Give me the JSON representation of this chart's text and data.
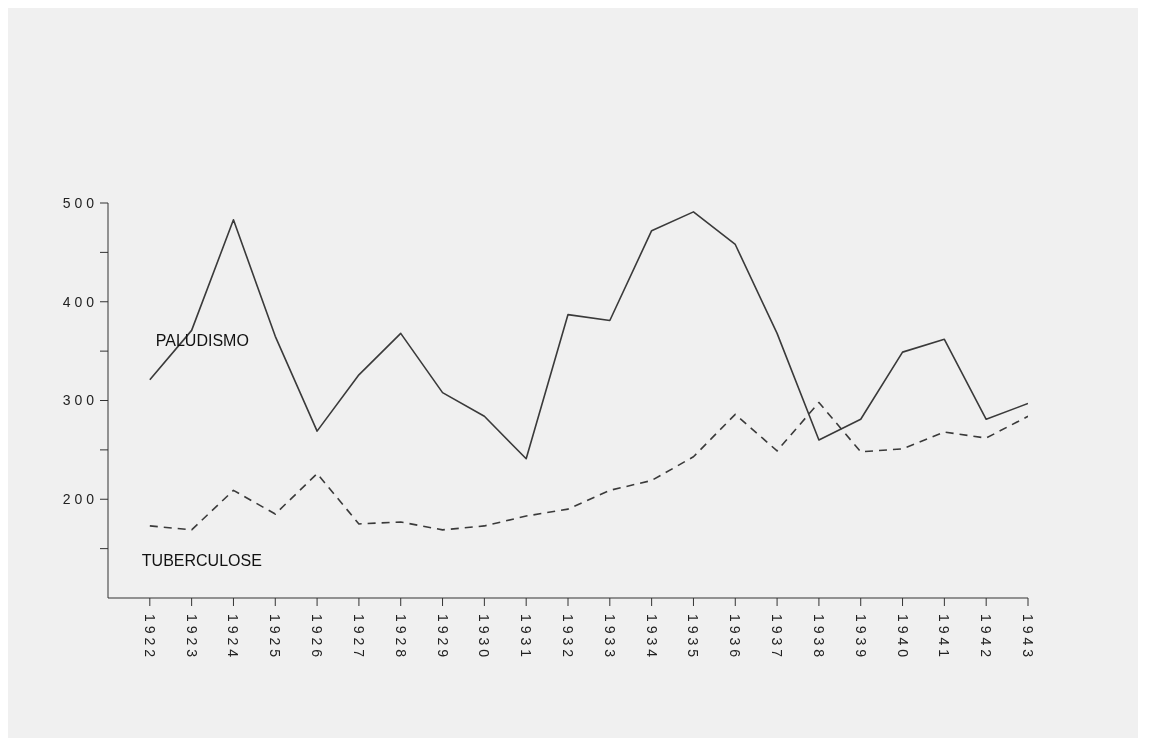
{
  "chart_data": {
    "type": "line",
    "categories": [
      "1922",
      "1923",
      "1924",
      "1925",
      "1926",
      "1927",
      "1928",
      "1929",
      "1930",
      "1931",
      "1932",
      "1933",
      "1934",
      "1935",
      "1936",
      "1937",
      "1938",
      "1939",
      "1940",
      "1941",
      "1942",
      "1943"
    ],
    "series": [
      {
        "name": "PALUDISMO",
        "color": "#3a3a3a",
        "line_style": "solid",
        "values": [
          321,
          371,
          483,
          365,
          269,
          326,
          368,
          308,
          284,
          241,
          387,
          381,
          472,
          491,
          458,
          368,
          260,
          281,
          349,
          362,
          281,
          297
        ]
      },
      {
        "name": "TUBERCULOSE",
        "color": "#3a3a3a",
        "line_style": "dashed",
        "values": [
          173,
          169,
          209,
          185,
          226,
          175,
          177,
          169,
          173,
          183,
          190,
          209,
          219,
          243,
          286,
          249,
          298,
          248,
          251,
          268,
          262,
          284
        ]
      }
    ],
    "ylim": [
      100,
      500
    ],
    "yticks": [
      {
        "value": 150,
        "label": null
      },
      200,
      {
        "value": 250,
        "label": null
      },
      300,
      {
        "value": 350,
        "label": null
      },
      400,
      {
        "value": 450,
        "label": null
      },
      500
    ],
    "marker": "none"
  }
}
